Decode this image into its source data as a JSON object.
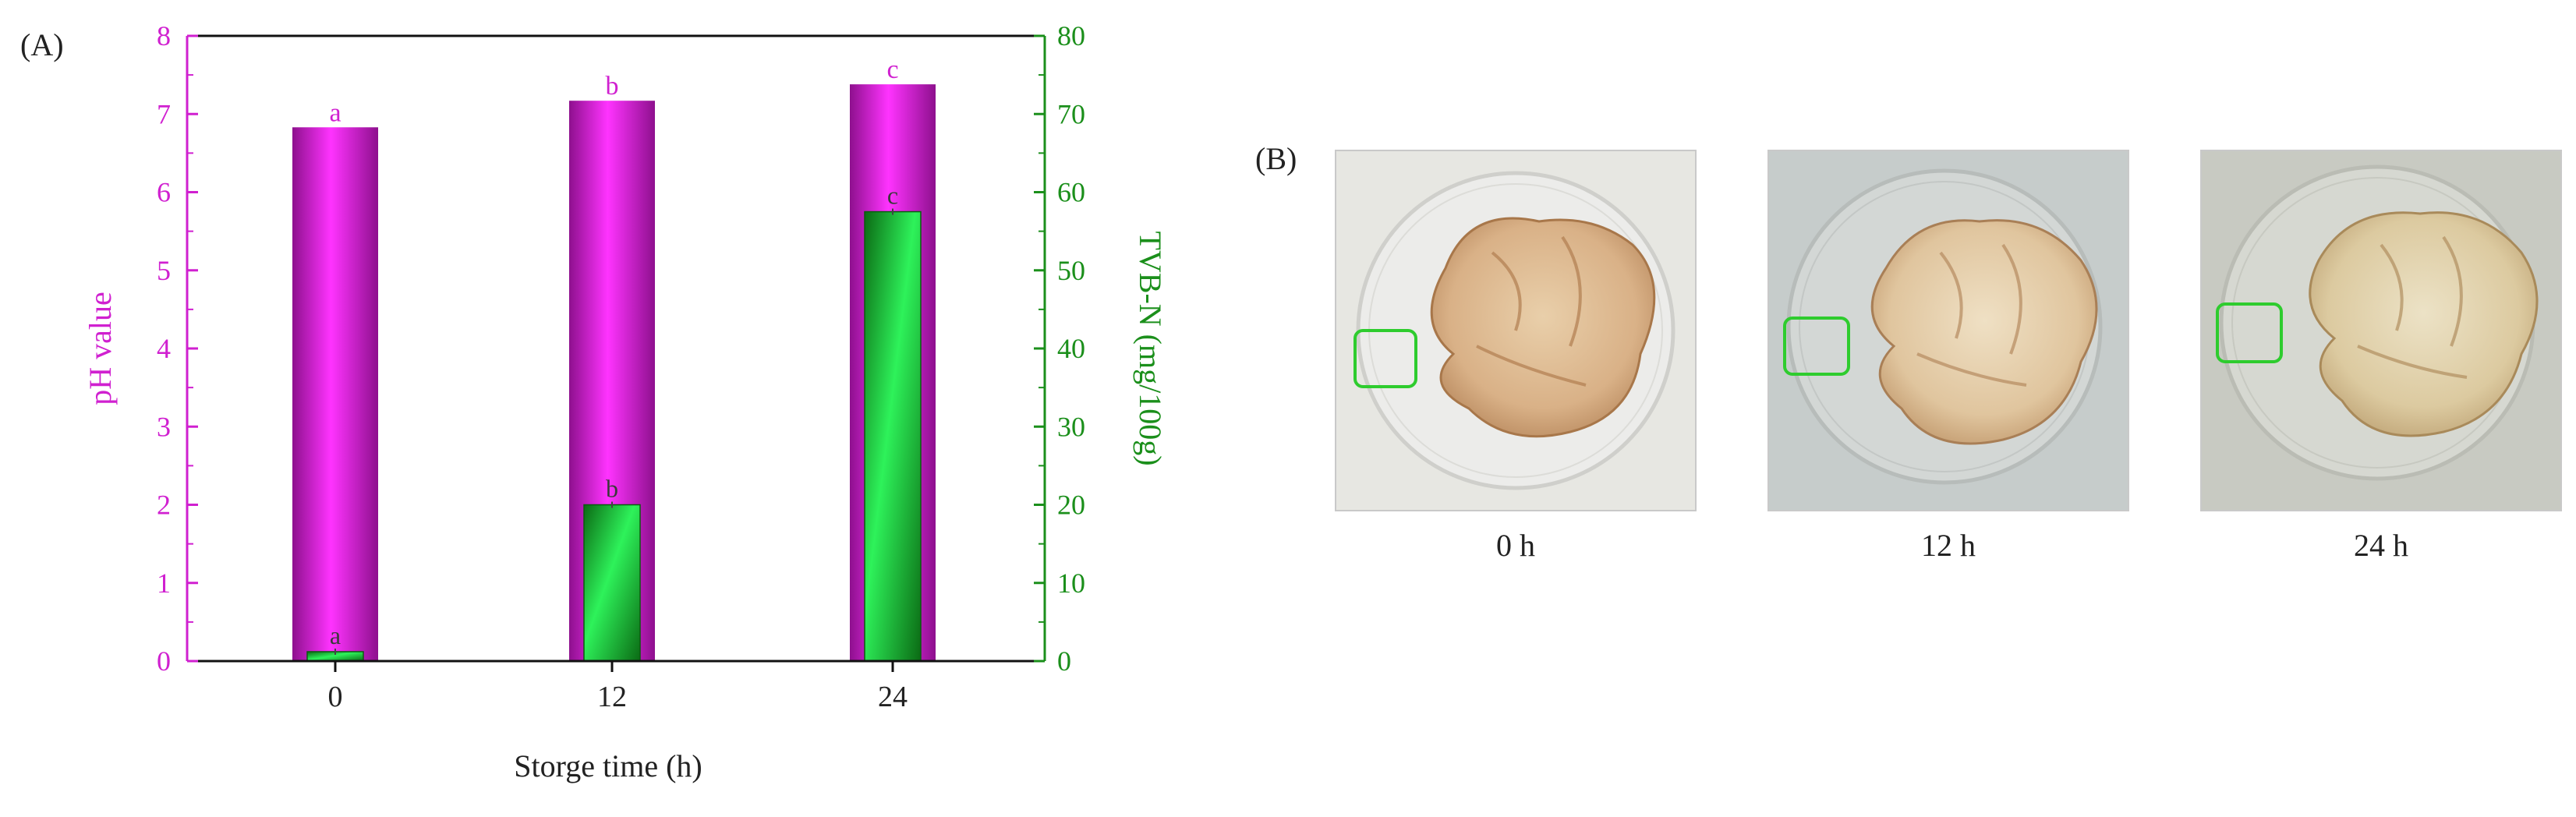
{
  "panel_a_label": "(A)",
  "panel_b_label": "(B)",
  "chart_data": {
    "type": "bar",
    "categories": [
      "0",
      "12",
      "24"
    ],
    "xlabel": "Storge time (h)",
    "ylabel_left": "pH value",
    "ylabel_right": "TVB-N (mg/100g)",
    "ylim_left": [
      0,
      8
    ],
    "ylim_right": [
      0,
      80
    ],
    "yticks_left": [
      "0",
      "1",
      "2",
      "3",
      "4",
      "5",
      "6",
      "7",
      "8"
    ],
    "yticks_right": [
      "0",
      "10",
      "20",
      "30",
      "40",
      "50",
      "60",
      "70",
      "80"
    ],
    "series": [
      {
        "name": "pH value",
        "axis": "left",
        "color": "#cc22cc",
        "values": [
          6.83,
          7.17,
          7.38
        ],
        "labels": [
          "a",
          "b",
          "c"
        ]
      },
      {
        "name": "TVB-N (mg/100g)",
        "axis": "right",
        "color": "#1fcf2f",
        "values": [
          1.2,
          20.0,
          57.5
        ],
        "labels": [
          "a",
          "b",
          "c"
        ]
      }
    ],
    "left_axis_color": "#d020d0",
    "right_axis_color": "#1b8f1b",
    "grid": false
  },
  "photos": [
    {
      "caption": "0 h",
      "bg": "#e7e7e2"
    },
    {
      "caption": "12 h",
      "bg": "#c6cccb"
    },
    {
      "caption": "24 h",
      "bg": "#c8cac2"
    }
  ]
}
